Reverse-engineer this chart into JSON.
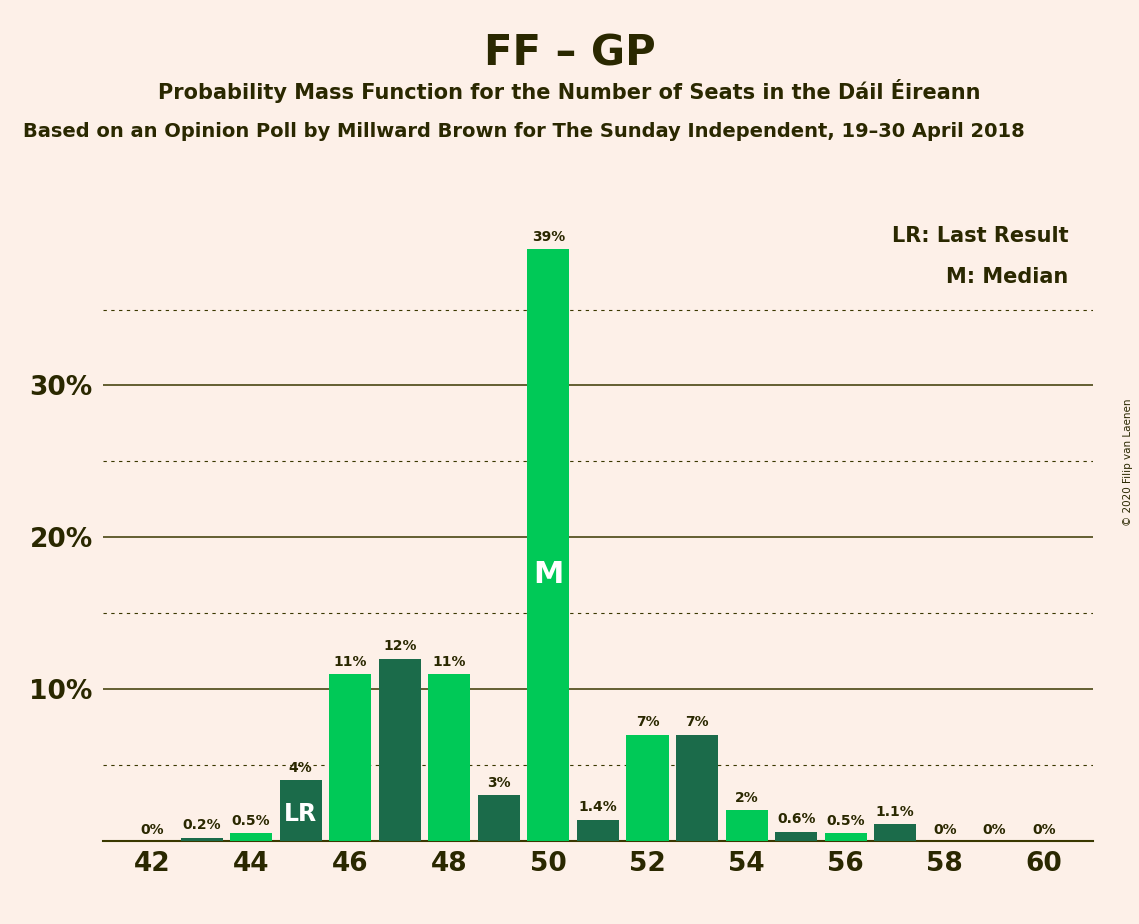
{
  "title": "FF – GP",
  "subtitle": "Probability Mass Function for the Number of Seats in the Dáil Éireann",
  "source": "Based on an Opinion Poll by Millward Brown for The Sunday Independent, 19–30 April 2018",
  "copyright": "© 2020 Filip van Laenen",
  "legend_lr": "LR: Last Result",
  "legend_m": "M: Median",
  "seats": [
    42,
    43,
    44,
    45,
    46,
    47,
    48,
    49,
    50,
    51,
    52,
    53,
    54,
    55,
    56,
    57,
    58,
    59,
    60
  ],
  "values": [
    0.0,
    0.2,
    0.5,
    4.0,
    11.0,
    12.0,
    11.0,
    3.0,
    39.0,
    1.4,
    7.0,
    7.0,
    2.0,
    0.6,
    0.5,
    1.1,
    0.0,
    0.0,
    0.0
  ],
  "labels": [
    "0%",
    "0.2%",
    "0.5%",
    "4%",
    "11%",
    "12%",
    "11%",
    "3%",
    "39%",
    "1.4%",
    "7%",
    "7%",
    "2%",
    "0.6%",
    "0.5%",
    "1.1%",
    "0%",
    "0%",
    "0%"
  ],
  "last_result_seat": 45,
  "median_seat": 50,
  "bright_green": "#00c957",
  "dark_teal": "#1b6b4a",
  "background_color": "#fdf0e8",
  "ylim_max": 42,
  "solid_lines": [
    10,
    20,
    30
  ],
  "dotted_lines": [
    5,
    15,
    25,
    35
  ]
}
